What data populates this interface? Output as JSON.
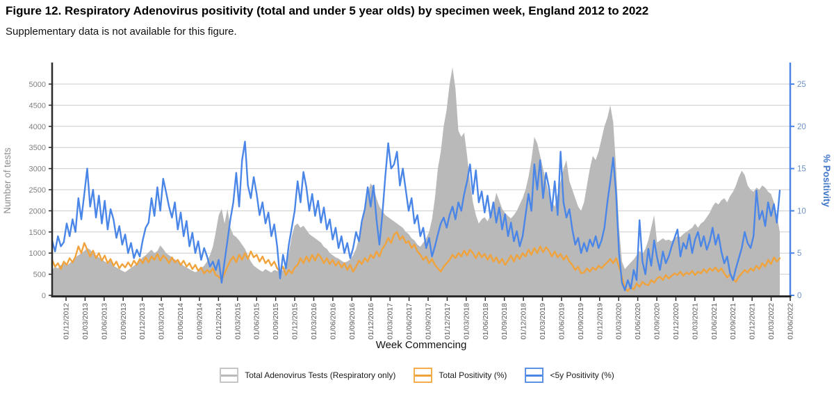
{
  "figure": {
    "title": "Figure 12. Respiratory Adenovirus positivity (total and under 5 year olds) by specimen week, England 2012 to 2022",
    "subtitle": "Supplementary data is not available for this figure."
  },
  "chart_data": {
    "type": "combo-area-line",
    "title": "",
    "grid": "horizontal",
    "grid_color": "#cbcbcb",
    "legend_position": "bottom",
    "x_axis": {
      "label": "Week Commencing",
      "axis_color": "#2a2a2a",
      "tick_label_color": "#595959",
      "tick_labels": [
        "01/12/2012",
        "01/03/2013",
        "01/06/2013",
        "01/09/2013",
        "01/12/2013",
        "01/03/2014",
        "01/06/2014",
        "01/09/2014",
        "01/12/2014",
        "01/03/2015",
        "01/06/2015",
        "01/09/2015",
        "01/12/2015",
        "01/03/2016",
        "01/06/2016",
        "01/09/2016",
        "01/12/2016",
        "01/03/2017",
        "01/06/2017",
        "01/09/2017",
        "01/12/2017",
        "01/03/2018",
        "01/06/2018",
        "01/09/2018",
        "01/12/2018",
        "01/03/2019",
        "01/06/2019",
        "01/09/2019",
        "01/12/2019",
        "01/03/2020",
        "01/06/2020",
        "01/09/2020",
        "01/12/2020",
        "01/03/2021",
        "01/06/2021",
        "01/09/2021",
        "01/12/2021",
        "01/03/2022",
        "01/06/2022"
      ]
    },
    "y_axis_left": {
      "label": "Number of tests",
      "label_color": "#8f8f8f",
      "axis_color": "#2a2a2a",
      "tick_label_color": "#808080",
      "min": 0,
      "max": 5428,
      "ticks": [
        0,
        500,
        1000,
        1500,
        2000,
        2500,
        3000,
        3500,
        4000,
        4500,
        5000
      ]
    },
    "y_axis_right": {
      "label": "% Positivity",
      "label_color": "#4178ca",
      "axis_color": "#4a86e8",
      "tick_label_color": "#6d92c9",
      "min": 0,
      "max": 27.1,
      "ticks": [
        0,
        5,
        10,
        15,
        20,
        25
      ]
    },
    "series": [
      {
        "name": "Total Adenovirus Tests (Respiratory only)",
        "type": "area",
        "axis": "left",
        "color": "#b9b9b9",
        "key_border": "#c6c6c6",
        "values": [
          600,
          680,
          640,
          720,
          760,
          700,
          760,
          820,
          900,
          950,
          1000,
          1050,
          1120,
          1080,
          1000,
          950,
          900,
          850,
          800,
          760,
          820,
          700,
          660,
          620,
          580,
          550,
          600,
          650,
          700,
          760,
          830,
          900,
          950,
          1020,
          1080,
          1000,
          1050,
          1180,
          1100,
          1000,
          950,
          900,
          850,
          800,
          760,
          700,
          660,
          620,
          580,
          550,
          580,
          640,
          700,
          800,
          950,
          1150,
          1500,
          1900,
          2050,
          1700,
          2050,
          1600,
          1430,
          1380,
          1300,
          1200,
          1100,
          950,
          800,
          700,
          650,
          600,
          560,
          620,
          580,
          540,
          600,
          575,
          560,
          600,
          700,
          1000,
          1400,
          1650,
          1700,
          1600,
          1650,
          1550,
          1450,
          1400,
          1350,
          1300,
          1250,
          1150,
          1100,
          1000,
          950,
          900,
          870,
          820,
          780,
          800,
          850,
          950,
          1100,
          1350,
          1650,
          2000,
          2400,
          2650,
          2550,
          2300,
          2100,
          2000,
          1900,
          1850,
          1800,
          1750,
          1700,
          1650,
          1600,
          1500,
          1450,
          1350,
          1300,
          1200,
          1150,
          1250,
          1350,
          1500,
          1800,
          2300,
          3000,
          3400,
          4000,
          4400,
          5000,
          5400,
          4900,
          3900,
          3750,
          3850,
          3300,
          2700,
          2200,
          1900,
          1700,
          1800,
          1850,
          1750,
          1900,
          2100,
          2430,
          2250,
          2050,
          1950,
          1880,
          1820,
          1900,
          2000,
          2150,
          2300,
          2500,
          2800,
          3200,
          3750,
          3600,
          3300,
          3000,
          2700,
          2400,
          2200,
          2100,
          2400,
          2700,
          3000,
          3200,
          2700,
          2500,
          2300,
          2100,
          2000,
          2200,
          2600,
          3000,
          3300,
          3200,
          3400,
          3700,
          4000,
          4200,
          4500,
          4100,
          3000,
          1600,
          800,
          620,
          700,
          780,
          850,
          950,
          1050,
          980,
          1100,
          1300,
          1600,
          1900,
          1250,
          1300,
          1350,
          1300,
          1320,
          1280,
          1350,
          1400,
          1380,
          1450,
          1500,
          1550,
          1600,
          1700,
          1600,
          1700,
          1750,
          1850,
          1950,
          2100,
          2200,
          2150,
          2250,
          2300,
          2200,
          2350,
          2450,
          2600,
          2800,
          2950,
          2850,
          2600,
          2500,
          2450,
          2550,
          2500,
          2600,
          2550,
          2450,
          2400,
          2200,
          1900,
          1500
        ]
      },
      {
        "name": "Total Positivity (%)",
        "type": "line",
        "axis": "right",
        "color": "#f0a33c",
        "key_border": "#f3ad4a",
        "values": [
          4.2,
          3.4,
          3.8,
          3.1,
          4.0,
          3.6,
          4.4,
          3.9,
          4.6,
          5.8,
          5.0,
          6.2,
          5.4,
          4.6,
          5.3,
          4.4,
          5.0,
          4.1,
          4.7,
          3.8,
          4.3,
          3.5,
          4.0,
          3.2,
          3.7,
          3.3,
          3.9,
          3.4,
          4.1,
          3.6,
          4.3,
          3.8,
          4.5,
          3.9,
          4.6,
          4.2,
          4.9,
          4.1,
          4.7,
          4.4,
          3.8,
          4.5,
          3.9,
          4.2,
          3.6,
          4.1,
          3.4,
          3.8,
          3.1,
          3.6,
          2.9,
          3.3,
          2.6,
          3.0,
          2.7,
          3.2,
          2.4,
          2.2,
          1.8,
          2.6,
          3.4,
          4.1,
          4.6,
          3.9,
          4.8,
          4.2,
          5.0,
          4.3,
          5.2,
          4.5,
          4.8,
          4.0,
          4.6,
          3.8,
          4.2,
          3.5,
          4.0,
          3.2,
          2.8,
          3.4,
          2.4,
          3.0,
          2.6,
          3.3,
          3.6,
          4.4,
          3.8,
          4.6,
          4.0,
          4.8,
          4.1,
          4.9,
          4.5,
          3.8,
          4.4,
          3.7,
          4.2,
          3.5,
          4.0,
          3.3,
          3.8,
          3.0,
          3.6,
          2.8,
          3.4,
          4.1,
          3.7,
          4.4,
          4.0,
          4.8,
          4.4,
          5.2,
          4.6,
          5.5,
          6.0,
          6.8,
          6.2,
          7.2,
          7.5,
          6.6,
          7.0,
          6.2,
          6.4,
          5.6,
          6.0,
          5.2,
          4.8,
          4.2,
          4.6,
          3.8,
          4.3,
          3.6,
          3.2,
          2.8,
          3.4,
          3.8,
          4.2,
          4.8,
          4.4,
          5.0,
          4.6,
          5.3,
          4.7,
          5.4,
          5.0,
          4.4,
          5.1,
          4.5,
          4.9,
          4.2,
          4.8,
          4.0,
          4.5,
          3.8,
          4.3,
          3.6,
          4.1,
          4.7,
          4.0,
          4.8,
          4.3,
          5.0,
          4.6,
          5.4,
          4.8,
          5.6,
          5.0,
          5.8,
          5.1,
          5.7,
          5.3,
          4.6,
          5.2,
          4.5,
          4.9,
          4.2,
          4.7,
          4.0,
          3.6,
          3.0,
          3.4,
          2.6,
          2.7,
          3.2,
          2.8,
          3.3,
          3.0,
          3.5,
          3.2,
          3.6,
          3.9,
          4.3,
          3.8,
          4.4,
          3.4,
          2.2,
          0.9,
          0.5,
          1.0,
          0.7,
          1.4,
          1.0,
          1.6,
          1.3,
          1.2,
          1.8,
          1.5,
          2.0,
          2.2,
          1.8,
          2.4,
          2.0,
          2.3,
          2.6,
          2.4,
          2.8,
          2.3,
          2.7,
          2.5,
          2.9,
          2.4,
          2.8,
          2.6,
          3.1,
          2.7,
          3.2,
          2.9,
          3.3,
          2.8,
          3.2,
          2.6,
          2.1,
          2.5,
          1.9,
          1.6,
          2.2,
          2.6,
          3.0,
          2.7,
          3.2,
          2.9,
          3.5,
          3.1,
          3.8,
          3.4,
          4.2,
          3.7,
          4.5,
          4.0,
          4.4
        ]
      },
      {
        "name": "<5y Positivity (%)",
        "type": "line",
        "axis": "right",
        "color": "#4a86e8",
        "key_border": "#5b92e5",
        "values": [
          6.5,
          5.2,
          7.0,
          5.8,
          6.3,
          8.5,
          7.0,
          9.0,
          7.5,
          11.5,
          9.0,
          12.0,
          15.0,
          10.5,
          12.5,
          9.2,
          11.8,
          8.5,
          11.2,
          7.8,
          10.2,
          9.0,
          6.8,
          8.2,
          6.0,
          7.2,
          5.0,
          6.2,
          4.4,
          5.4,
          4.6,
          6.5,
          8.0,
          8.6,
          11.5,
          9.4,
          12.8,
          10.0,
          13.8,
          12.2,
          10.5,
          9.2,
          11.0,
          7.8,
          9.8,
          7.0,
          8.8,
          5.8,
          7.4,
          5.0,
          6.4,
          4.2,
          5.6,
          4.6,
          3.4,
          4.0,
          3.0,
          4.2,
          1.5,
          4.0,
          6.5,
          9.0,
          11.0,
          14.5,
          10.5,
          16.0,
          18.2,
          13.0,
          11.5,
          14.0,
          12.0,
          9.5,
          11.0,
          8.5,
          9.8,
          7.0,
          8.4,
          5.8,
          2.0,
          4.8,
          3.2,
          6.0,
          8.0,
          10.0,
          13.5,
          11.0,
          14.6,
          12.8,
          10.0,
          12.0,
          9.4,
          11.2,
          8.6,
          10.4,
          7.8,
          9.0,
          6.6,
          8.0,
          5.6,
          7.0,
          5.0,
          6.2,
          4.4,
          5.6,
          7.5,
          6.4,
          8.8,
          10.2,
          12.8,
          10.5,
          13.0,
          9.0,
          6.0,
          9.5,
          14.0,
          18.0,
          15.0,
          15.5,
          17.0,
          13.0,
          15.0,
          12.5,
          10.0,
          11.5,
          8.5,
          9.5,
          7.0,
          8.0,
          5.6,
          6.8,
          4.6,
          5.8,
          7.2,
          8.5,
          9.2,
          8.0,
          9.5,
          10.5,
          9.0,
          11.0,
          10.0,
          12.0,
          13.5,
          15.5,
          12.0,
          14.8,
          11.0,
          12.3,
          9.8,
          11.8,
          9.2,
          11.0,
          8.6,
          10.4,
          7.8,
          9.6,
          7.0,
          8.6,
          6.4,
          7.6,
          5.8,
          7.0,
          9.5,
          12.0,
          10.0,
          15.5,
          12.5,
          16.0,
          11.5,
          14.5,
          12.8,
          10.0,
          13.5,
          9.5,
          17.0,
          11.0,
          9.2,
          10.2,
          7.8,
          6.0,
          6.8,
          5.0,
          6.2,
          5.2,
          6.6,
          5.8,
          7.0,
          5.6,
          6.5,
          8.0,
          11.0,
          13.5,
          16.3,
          12.0,
          5.0,
          1.5,
          0.6,
          1.8,
          0.8,
          3.0,
          1.8,
          8.9,
          4.0,
          2.5,
          5.5,
          3.5,
          6.5,
          4.5,
          3.0,
          5.2,
          3.8,
          4.6,
          5.8,
          6.8,
          7.8,
          4.6,
          6.2,
          5.5,
          7.2,
          5.0,
          6.6,
          7.5,
          5.8,
          7.0,
          5.4,
          6.4,
          8.0,
          6.0,
          7.2,
          5.2,
          3.8,
          4.6,
          2.6,
          1.8,
          3.2,
          4.4,
          5.6,
          7.5,
          6.2,
          5.6,
          7.0,
          12.4,
          9.0,
          10.0,
          8.2,
          11.0,
          9.4,
          10.8,
          8.6,
          12.4
        ]
      }
    ]
  }
}
